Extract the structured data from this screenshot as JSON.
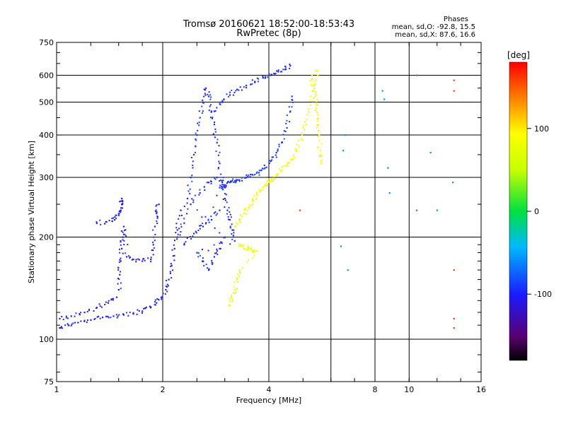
{
  "header": {
    "title": "Tromsø 20160621 18:52:00-18:53:43",
    "subtitle": "RwPretec (8p)"
  },
  "phase_box": {
    "heading": "Phases",
    "line_o": "mean, sd,O: -92.8, 15.5",
    "line_x": "mean, sd,X:  87.6, 16.6"
  },
  "colorbar": {
    "label": "[deg]",
    "ticks": [
      "100",
      "0",
      "-100"
    ],
    "tick_values": [
      100,
      0,
      -100
    ],
    "range": [
      -180,
      180
    ]
  },
  "chart_data": {
    "type": "scatter",
    "title": "Tromsø 20160621 18:52:00-18:53:43",
    "subtitle": "RwPretec (8p)",
    "xlabel": "Frequency [MHz]",
    "ylabel": "Stationary phase Virtual Height [km]",
    "xscale": "log",
    "yscale": "log",
    "xlim": [
      1,
      16
    ],
    "ylim": [
      75,
      750
    ],
    "xticks": [
      1,
      2,
      4,
      8,
      16
    ],
    "xtick_labels": [
      "1",
      "2",
      "4",
      "8",
      "16"
    ],
    "x_major_grid": [
      2,
      4,
      6,
      8,
      10
    ],
    "yticks": [
      75,
      100,
      200,
      300,
      400,
      500,
      600,
      750
    ],
    "ytick_labels": [
      "75",
      "100",
      "200",
      "300",
      "400",
      "500",
      "600",
      "750"
    ],
    "y_major_grid": [
      100,
      200,
      300,
      400,
      500,
      600
    ],
    "grid": true,
    "color_scale": "phase [deg], rainbow -180 to 180",
    "series": [
      {
        "role": "O-mode low trace",
        "phase": -100,
        "points": [
          [
            1.02,
            108
          ],
          [
            1.08,
            110
          ],
          [
            1.15,
            112
          ],
          [
            1.25,
            114
          ],
          [
            1.35,
            116
          ],
          [
            1.45,
            117
          ],
          [
            1.55,
            118
          ],
          [
            1.65,
            119
          ],
          [
            1.75,
            121
          ],
          [
            1.85,
            124
          ],
          [
            1.92,
            128
          ],
          [
            1.98,
            133
          ],
          [
            2.04,
            140
          ],
          [
            2.08,
            150
          ],
          [
            2.12,
            165
          ],
          [
            2.16,
            185
          ],
          [
            2.2,
            210
          ],
          [
            2.25,
            240
          ]
        ]
      },
      {
        "role": "O-mode lower branch",
        "phase": -100,
        "points": [
          [
            1.02,
            115
          ],
          [
            1.1,
            117
          ],
          [
            1.2,
            120
          ],
          [
            1.3,
            124
          ],
          [
            1.4,
            128
          ],
          [
            1.48,
            133
          ]
        ]
      },
      {
        "role": "E cusp trace",
        "phase": -100,
        "points": [
          [
            1.3,
            220
          ],
          [
            1.38,
            222
          ],
          [
            1.46,
            225
          ],
          [
            1.5,
            232
          ],
          [
            1.52,
            240
          ],
          [
            1.53,
            250
          ],
          [
            1.53,
            260
          ]
        ]
      },
      {
        "role": "E vertical trace",
        "phase": -100,
        "points": [
          [
            1.5,
            140
          ],
          [
            1.51,
            155
          ],
          [
            1.52,
            170
          ],
          [
            1.53,
            185
          ],
          [
            1.54,
            200
          ],
          [
            1.55,
            215
          ],
          [
            1.58,
            175
          ],
          [
            1.65,
            172
          ],
          [
            1.75,
            170
          ],
          [
            1.85,
            172
          ],
          [
            1.88,
            190
          ],
          [
            1.9,
            215
          ],
          [
            1.92,
            235
          ],
          [
            1.95,
            250
          ]
        ]
      },
      {
        "role": "F cloud",
        "phase": -95,
        "points": [
          [
            2.2,
            200
          ],
          [
            2.3,
            220
          ],
          [
            2.35,
            260
          ],
          [
            2.4,
            300
          ],
          [
            2.45,
            350
          ],
          [
            2.5,
            400
          ],
          [
            2.55,
            450
          ],
          [
            2.6,
            500
          ],
          [
            2.65,
            550
          ],
          [
            2.7,
            520
          ],
          [
            2.75,
            470
          ],
          [
            2.8,
            430
          ],
          [
            2.85,
            380
          ],
          [
            2.9,
            330
          ],
          [
            2.95,
            290
          ],
          [
            3.0,
            260
          ],
          [
            3.05,
            240
          ],
          [
            3.1,
            225
          ],
          [
            3.15,
            210
          ],
          [
            3.2,
            195
          ],
          [
            2.5,
            180
          ],
          [
            2.6,
            170
          ],
          [
            2.7,
            160
          ],
          [
            2.8,
            175
          ],
          [
            2.9,
            185
          ],
          [
            3.0,
            200
          ],
          [
            2.4,
            250
          ],
          [
            2.55,
            270
          ],
          [
            2.7,
            290
          ],
          [
            2.85,
            300
          ],
          [
            3.0,
            280
          ],
          [
            2.3,
            190
          ],
          [
            2.45,
            205
          ],
          [
            2.6,
            215
          ],
          [
            2.75,
            225
          ],
          [
            2.9,
            240
          ]
        ]
      },
      {
        "role": "F2 upper trace",
        "phase": -90,
        "points": [
          [
            2.9,
            280
          ],
          [
            3.0,
            285
          ],
          [
            3.1,
            290
          ],
          [
            3.2,
            293
          ],
          [
            3.3,
            295
          ],
          [
            3.45,
            300
          ],
          [
            3.6,
            305
          ],
          [
            3.75,
            310
          ],
          [
            3.9,
            320
          ],
          [
            4.05,
            335
          ],
          [
            4.2,
            355
          ],
          [
            4.35,
            380
          ],
          [
            4.5,
            420
          ],
          [
            4.6,
            470
          ],
          [
            4.65,
            520
          ]
        ]
      },
      {
        "role": "F2 top trace",
        "phase": -95,
        "points": [
          [
            2.8,
            470
          ],
          [
            2.95,
            500
          ],
          [
            3.1,
            525
          ],
          [
            3.25,
            545
          ],
          [
            3.45,
            560
          ],
          [
            3.65,
            575
          ],
          [
            3.85,
            590
          ],
          [
            4.05,
            600
          ],
          [
            4.25,
            615
          ],
          [
            4.45,
            625
          ],
          [
            4.6,
            640
          ]
        ]
      },
      {
        "role": "X-mode trace",
        "phase": 90,
        "points": [
          [
            3.2,
            215
          ],
          [
            3.3,
            225
          ],
          [
            3.4,
            235
          ],
          [
            3.5,
            245
          ],
          [
            3.6,
            255
          ],
          [
            3.7,
            265
          ],
          [
            3.8,
            275
          ],
          [
            3.9,
            285
          ],
          [
            4.0,
            290
          ],
          [
            4.1,
            295
          ],
          [
            4.2,
            305
          ],
          [
            4.35,
            315
          ],
          [
            4.5,
            325
          ],
          [
            4.65,
            340
          ],
          [
            4.8,
            360
          ],
          [
            4.95,
            390
          ],
          [
            5.1,
            430
          ],
          [
            5.25,
            490
          ],
          [
            5.4,
            560
          ],
          [
            5.5,
            620
          ]
        ]
      },
      {
        "role": "X-mode lower trace",
        "phase": 80,
        "points": [
          [
            3.3,
            190
          ],
          [
            3.4,
            185
          ],
          [
            3.5,
            185
          ],
          [
            3.6,
            183
          ],
          [
            3.7,
            182
          ],
          [
            3.3,
            160
          ],
          [
            3.25,
            150
          ],
          [
            3.2,
            140
          ],
          [
            3.15,
            132
          ],
          [
            3.1,
            126
          ]
        ]
      },
      {
        "role": "X-mode cusp",
        "phase": 95,
        "points": [
          [
            5.3,
            600
          ],
          [
            5.35,
            560
          ],
          [
            5.4,
            520
          ],
          [
            5.45,
            480
          ],
          [
            5.5,
            440
          ],
          [
            5.55,
            400
          ],
          [
            5.6,
            360
          ],
          [
            5.62,
            330
          ]
        ]
      },
      {
        "role": "scattered echoes",
        "phase": -60,
        "points": [
          [
            6.6,
            400
          ],
          [
            6.5,
            360
          ],
          [
            8.7,
            320
          ],
          [
            8.8,
            270
          ],
          [
            11.5,
            355
          ],
          [
            12.0,
            240
          ],
          [
            13.3,
            290
          ],
          [
            6.4,
            188
          ],
          [
            6.7,
            160
          ],
          [
            8.4,
            540
          ],
          [
            8.5,
            510
          ],
          [
            10.5,
            600
          ]
        ]
      },
      {
        "role": "scattered X echoes",
        "phase": 160,
        "points": [
          [
            4.9,
            240
          ],
          [
            10.5,
            240
          ],
          [
            13.4,
            580
          ],
          [
            13.4,
            540
          ],
          [
            13.4,
            160
          ],
          [
            13.4,
            115
          ],
          [
            13.4,
            108
          ]
        ]
      }
    ]
  }
}
